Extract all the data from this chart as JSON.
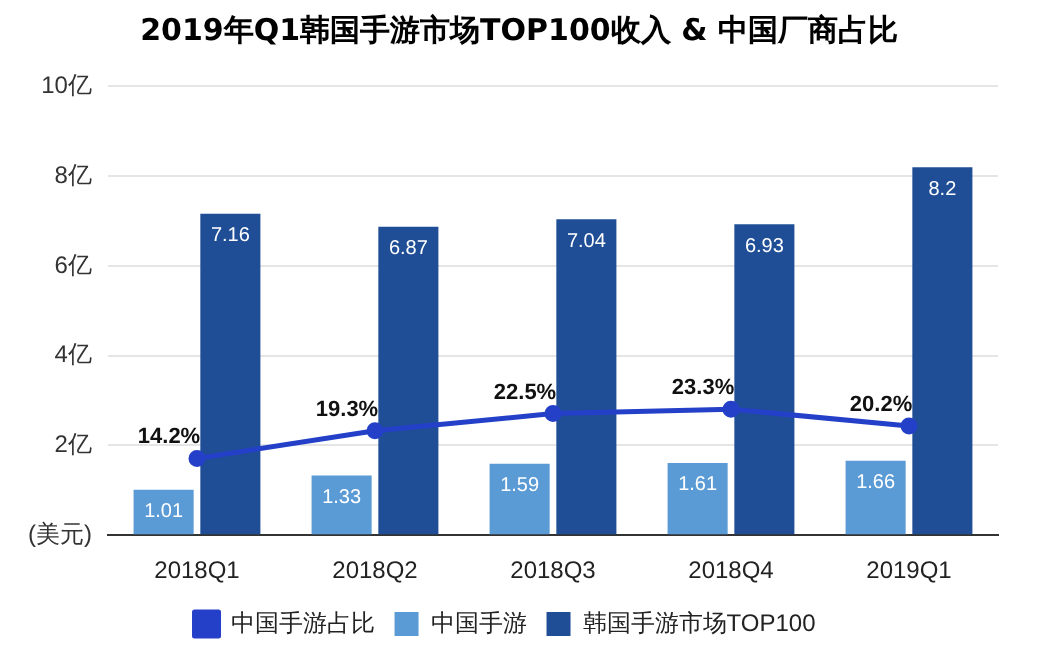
{
  "chart_data": {
    "type": "bar",
    "title": "2019年Q1韩国手游市场TOP100收入 & 中国厂商占比",
    "categories": [
      "2018Q1",
      "2018Q2",
      "2018Q3",
      "2018Q4",
      "2019Q1"
    ],
    "series": [
      {
        "name": "中国手游占比",
        "type": "line",
        "axis": "y2",
        "color": "#2440c8",
        "values": [
          14.2,
          19.3,
          22.5,
          23.3,
          20.2
        ],
        "value_labels": [
          "14.2%",
          "19.3%",
          "22.5%",
          "23.3%",
          "20.2%"
        ],
        "marker": "circle"
      },
      {
        "name": "中国手游",
        "color": "#5b9bd5",
        "values": [
          1.01,
          1.33,
          1.59,
          1.61,
          1.66
        ],
        "value_labels": [
          "1.01",
          "1.33",
          "1.59",
          "1.61",
          "1.66"
        ]
      },
      {
        "name": "韩国手游市场TOP100",
        "color": "#1f4e96",
        "values": [
          7.16,
          6.87,
          7.04,
          6.93,
          8.2
        ],
        "value_labels": [
          "7.16",
          "6.87",
          "7.04",
          "6.93",
          "8.2"
        ]
      }
    ],
    "ylim": [
      0,
      10
    ],
    "yticks": [
      {
        "value": 0,
        "label": "(美元)"
      },
      {
        "value": 2,
        "label": "2亿"
      },
      {
        "value": 4,
        "label": "4亿"
      },
      {
        "value": 6,
        "label": "6亿"
      },
      {
        "value": 8,
        "label": "8亿"
      },
      {
        "value": 10,
        "label": "10亿"
      }
    ],
    "y2lim": [
      0,
      83
    ],
    "grid": "y",
    "legend": "bottom"
  }
}
